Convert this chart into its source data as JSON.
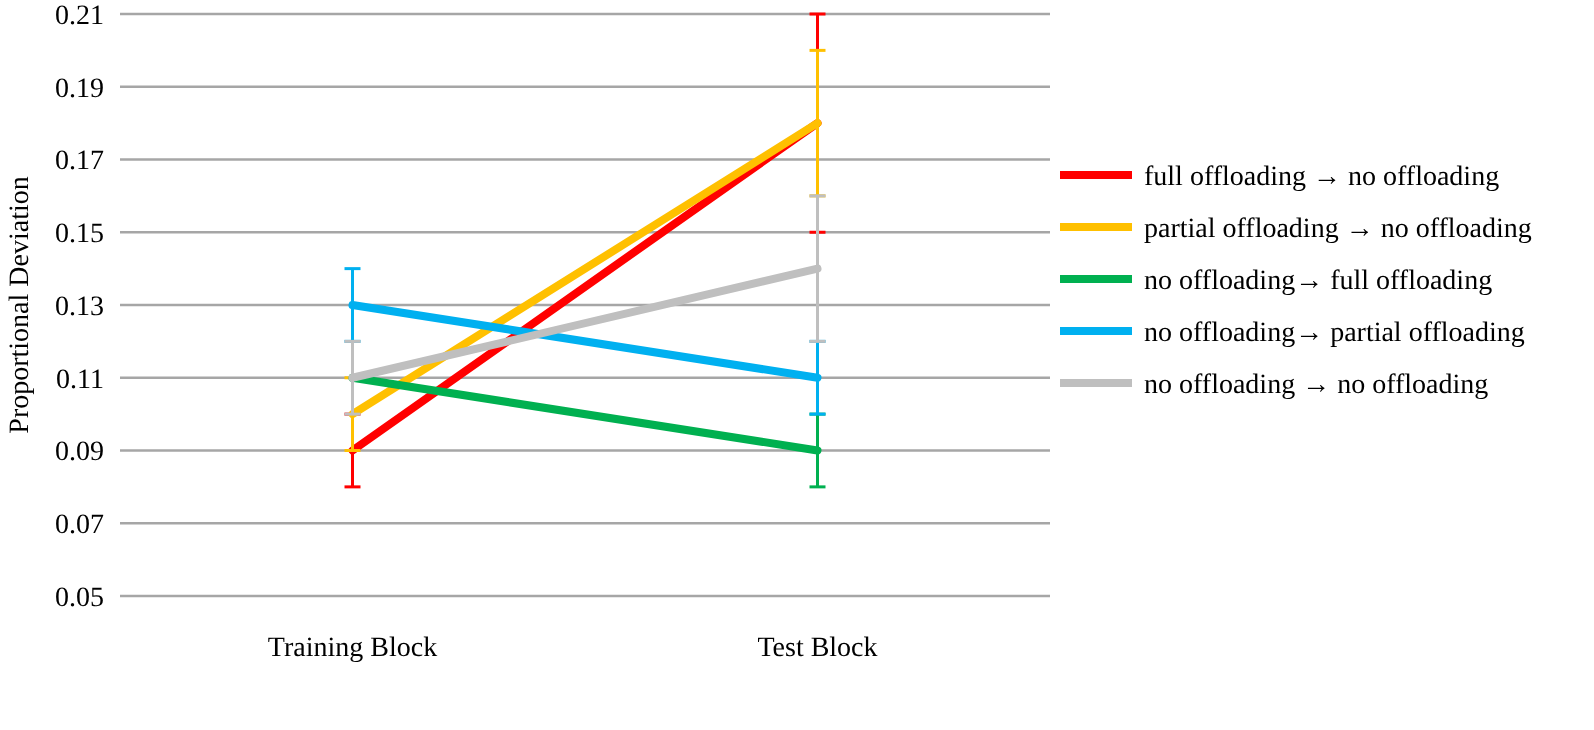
{
  "chart_data": {
    "type": "line",
    "ylabel": "Proportional Deviation",
    "categories": [
      "Training Block",
      "Test Block"
    ],
    "ylim": [
      0.05,
      0.21
    ],
    "yticks": [
      {
        "value": 0.05,
        "label": "0.05"
      },
      {
        "value": 0.07,
        "label": "0.07"
      },
      {
        "value": 0.09,
        "label": "0.09"
      },
      {
        "value": 0.11,
        "label": "0.11"
      },
      {
        "value": 0.13,
        "label": "0.13"
      },
      {
        "value": 0.15,
        "label": "0.15"
      },
      {
        "value": 0.17,
        "label": "0.17"
      },
      {
        "value": 0.19,
        "label": "0.19"
      },
      {
        "value": 0.21,
        "label": "0.21"
      }
    ],
    "grid": "y",
    "legend": "right",
    "marker": "none",
    "line_style": "solid",
    "series": [
      {
        "name": "full offloading → no offloading",
        "color": "#ff0000",
        "values": [
          0.09,
          0.18
        ],
        "errors": [
          0.01,
          0.03
        ]
      },
      {
        "name": "partial offloading → no offloading",
        "color": "#ffc000",
        "values": [
          0.1,
          0.18
        ],
        "errors": [
          0.01,
          0.02
        ]
      },
      {
        "name": "no offloading→ full offloading",
        "color": "#00b050",
        "values": [
          0.11,
          0.09
        ],
        "errors": [
          null,
          0.01
        ]
      },
      {
        "name": "no offloading→ partial offloading",
        "color": "#00b0f0",
        "values": [
          0.13,
          0.11
        ],
        "errors": [
          0.01,
          0.01
        ]
      },
      {
        "name": "no offloading → no offloading",
        "color": "#bfbfbf",
        "values": [
          0.11,
          0.14
        ],
        "errors": [
          0.01,
          0.02
        ]
      }
    ]
  }
}
